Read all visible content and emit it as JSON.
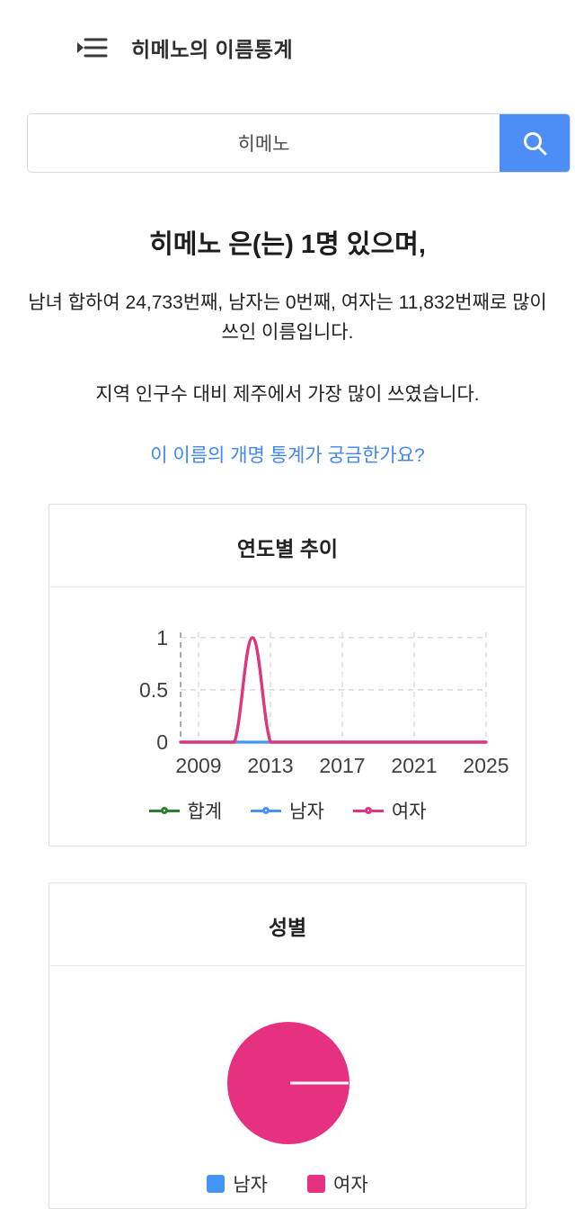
{
  "header": {
    "title": "히메노의 이름통계"
  },
  "search": {
    "value": "히메노"
  },
  "summary": {
    "headline": "히메노 은(는) 1명 있으며,",
    "detail": "남녀 합하여 24,733번째, 남자는 0번째, 여자는 11,832번째로 많이 쓰인 이름입니다.",
    "region": "지역 인구수 대비 제주에서 가장 많이 쓰였습니다.",
    "rename_link": "이 이름의 개명 통계가 궁금한가요?"
  },
  "colors": {
    "search_button": "#4d8df6",
    "link_blue": "#4285f4",
    "total_green": "#2e7d32",
    "male_blue": "#4494f5",
    "female_pink": "#e5317f"
  },
  "chart_data": [
    {
      "type": "line",
      "title": "연도별 추이",
      "x": [
        2008,
        2009,
        2010,
        2011,
        2012,
        2013,
        2014,
        2015,
        2016,
        2017,
        2018,
        2019,
        2020,
        2021,
        2022,
        2023,
        2024,
        2025
      ],
      "xticks": [
        2009,
        2013,
        2017,
        2021,
        2025
      ],
      "yticks": [
        0,
        0.5,
        1
      ],
      "ylim": [
        0,
        1.05
      ],
      "grid": "dashed",
      "legend_position": "bottom",
      "series": [
        {
          "name": "합계",
          "color": "#2e7d32",
          "values": [
            0,
            0,
            0,
            0,
            1,
            0,
            0,
            0,
            0,
            0,
            0,
            0,
            0,
            0,
            0,
            0,
            0,
            0
          ]
        },
        {
          "name": "남자",
          "color": "#4494f5",
          "values": [
            0,
            0,
            0,
            0,
            0,
            0,
            0,
            0,
            0,
            0,
            0,
            0,
            0,
            0,
            0,
            0,
            0,
            0
          ]
        },
        {
          "name": "여자",
          "color": "#e5317f",
          "values": [
            0,
            0,
            0,
            0,
            1,
            0,
            0,
            0,
            0,
            0,
            0,
            0,
            0,
            0,
            0,
            0,
            0,
            0
          ]
        }
      ]
    },
    {
      "type": "pie",
      "title": "성별",
      "categories": [
        "남자",
        "여자"
      ],
      "values": [
        0,
        1
      ],
      "colors": [
        "#4494f5",
        "#e5317f"
      ],
      "legend_position": "bottom"
    }
  ]
}
